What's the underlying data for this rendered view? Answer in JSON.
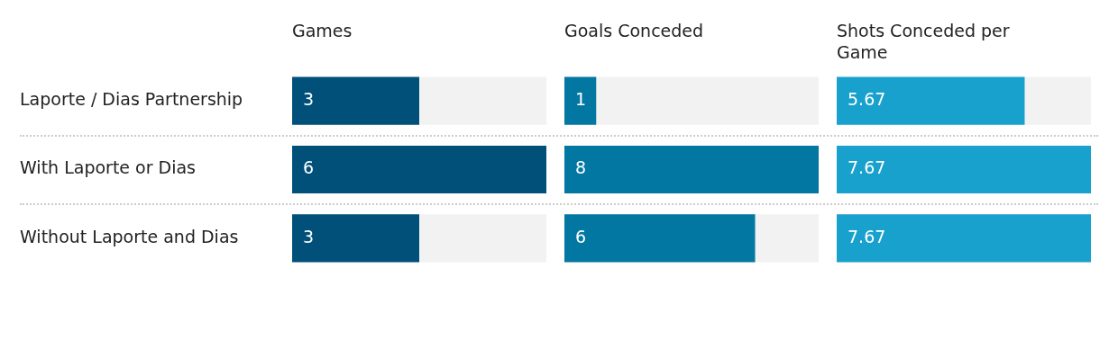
{
  "chart_data": [
    {
      "type": "bar",
      "orientation": "horizontal",
      "title": "Games",
      "categories": [
        "Laporte / Dias Partnership",
        "With Laporte or Dias",
        "Without Laporte and Dias"
      ],
      "values": [
        3,
        6,
        3
      ],
      "color": "#00507a",
      "xlim": [
        0,
        6
      ],
      "data_labels": true,
      "tick_labels": "y"
    },
    {
      "type": "bar",
      "orientation": "horizontal",
      "title": "Goals Conceded",
      "categories": [
        null,
        null,
        null
      ],
      "values": [
        1,
        8,
        6
      ],
      "color": "#0277a1",
      "xlim": [
        0,
        8
      ],
      "data_labels": true,
      "tick_labels": false
    },
    {
      "type": "bar",
      "orientation": "horizontal",
      "title": "Shots Conceded per Game",
      "categories": [
        null,
        null,
        null
      ],
      "values": [
        5.67,
        7.67,
        7.67
      ],
      "color": "#18a1cd",
      "xlim": [
        0,
        7.67
      ],
      "data_labels": true,
      "tick_labels": false
    }
  ]
}
